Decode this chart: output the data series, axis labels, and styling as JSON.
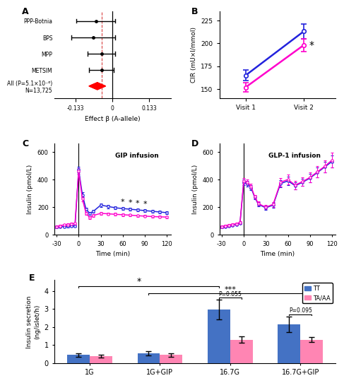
{
  "panel_A": {
    "studies": [
      "PPP-Botnia",
      "BPS",
      "MPP",
      "METSIM",
      "All (P=5.1×10⁻⁶)\nN=13,725"
    ],
    "effects": [
      -0.06,
      -0.07,
      -0.04,
      -0.04,
      -0.055
    ],
    "ci_low": [
      -0.13,
      -0.15,
      -0.09,
      -0.085,
      -0.085
    ],
    "ci_high": [
      0.01,
      0.01,
      0.01,
      0.005,
      -0.025
    ],
    "xticks": [
      -0.133,
      0,
      0.133
    ],
    "xlabel": "Effect β (A-allele)"
  },
  "panel_B": {
    "blue_v1": 165,
    "blue_v1_err": 6,
    "blue_v2": 213,
    "blue_v2_err": 8,
    "pink_v1": 152,
    "pink_v1_err": 5,
    "pink_v2": 198,
    "pink_v2_err": 7,
    "yticks": [
      150,
      175,
      200,
      225
    ],
    "ylabel": "CIR (mU×l/mmol)",
    "xticklabels": [
      "Visit 1",
      "Visit 2"
    ]
  },
  "panel_C": {
    "time": [
      -30,
      -25,
      -20,
      -15,
      -10,
      -5,
      0,
      5,
      10,
      15,
      20,
      30,
      40,
      50,
      60,
      70,
      80,
      90,
      100,
      110,
      120
    ],
    "blue": [
      55,
      58,
      60,
      62,
      64,
      65,
      470,
      290,
      185,
      155,
      170,
      215,
      205,
      195,
      190,
      185,
      180,
      175,
      170,
      165,
      160
    ],
    "pink": [
      60,
      65,
      72,
      75,
      78,
      82,
      460,
      260,
      155,
      125,
      140,
      155,
      152,
      148,
      145,
      142,
      138,
      135,
      132,
      130,
      128
    ],
    "blue_err": [
      8,
      8,
      8,
      8,
      8,
      8,
      20,
      18,
      12,
      10,
      10,
      12,
      12,
      12,
      12,
      10,
      10,
      10,
      10,
      10,
      10
    ],
    "pink_err": [
      8,
      8,
      8,
      8,
      8,
      8,
      20,
      18,
      12,
      10,
      10,
      10,
      10,
      10,
      10,
      8,
      8,
      8,
      8,
      8,
      8
    ],
    "ylabel": "Insulin (pmol/L)",
    "xlabel": "Time (min)",
    "yticks": [
      0,
      200,
      400,
      600
    ],
    "title": "GIP infusion",
    "star_times": [
      60,
      70,
      80,
      90
    ]
  },
  "panel_D": {
    "time": [
      -30,
      -25,
      -20,
      -15,
      -10,
      -5,
      0,
      5,
      10,
      15,
      20,
      30,
      40,
      50,
      60,
      70,
      80,
      90,
      100,
      110,
      120
    ],
    "blue": [
      55,
      60,
      65,
      70,
      75,
      85,
      380,
      370,
      340,
      270,
      220,
      195,
      215,
      370,
      390,
      355,
      380,
      410,
      450,
      490,
      530
    ],
    "pink": [
      60,
      65,
      70,
      75,
      80,
      90,
      390,
      380,
      350,
      275,
      225,
      200,
      220,
      380,
      400,
      360,
      385,
      415,
      455,
      495,
      540
    ],
    "blue_err": [
      8,
      8,
      8,
      8,
      8,
      8,
      20,
      20,
      18,
      15,
      15,
      15,
      18,
      25,
      30,
      25,
      25,
      30,
      35,
      40,
      45
    ],
    "pink_err": [
      8,
      8,
      8,
      8,
      8,
      8,
      20,
      20,
      18,
      15,
      15,
      15,
      18,
      30,
      35,
      30,
      30,
      35,
      40,
      45,
      55
    ],
    "ylabel": "Insulin (pmol/L)",
    "xlabel": "Time (min)",
    "yticks": [
      0,
      200,
      400,
      600
    ],
    "title": "GLP-1 infusion"
  },
  "panel_E": {
    "categories": [
      "1G",
      "1G+GIP",
      "16.7G",
      "16.7G+GIP"
    ],
    "TT_vals": [
      0.45,
      0.52,
      2.95,
      2.15
    ],
    "TT_errs": [
      0.1,
      0.12,
      0.55,
      0.42
    ],
    "TAAA_vals": [
      0.38,
      0.45,
      1.3,
      1.3
    ],
    "TAAA_errs": [
      0.08,
      0.1,
      0.18,
      0.15
    ],
    "ylabel": "Insulin secretion\n(ng/islet/h)",
    "TT_color": "#4472C4",
    "TAAA_color": "#FF85B3",
    "ylim": [
      0,
      4.6
    ],
    "yticks": [
      0,
      1,
      2,
      3,
      4
    ]
  },
  "colors": {
    "blue": "#2222DD",
    "pink": "#FF00CC"
  }
}
